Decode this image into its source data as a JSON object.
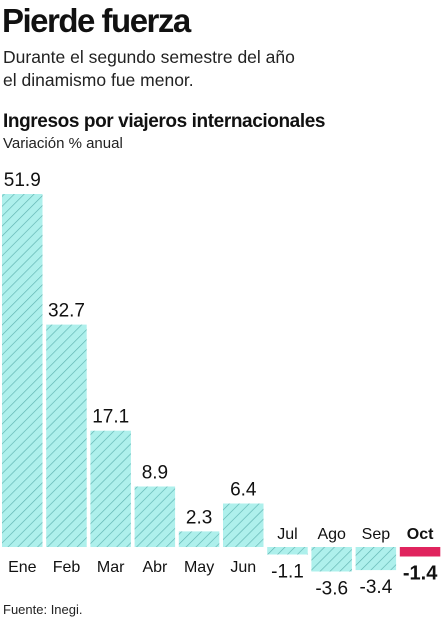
{
  "header": {
    "title": "Pierde fuerza",
    "subtitle_line1": "Durante el segundo semestre del año",
    "subtitle_line2": "el dinamismo fue menor."
  },
  "chart_data": {
    "type": "bar",
    "title": "Ingresos por viajeros internacionales",
    "subtitle": "Variación % anual",
    "categories": [
      "Ene",
      "Feb",
      "Mar",
      "Abr",
      "May",
      "Jun",
      "Jul",
      "Ago",
      "Sep",
      "Oct"
    ],
    "values": [
      51.9,
      32.7,
      17.1,
      8.9,
      2.3,
      6.4,
      -1.1,
      -3.6,
      -3.4,
      -1.4
    ],
    "value_labels": [
      "51.9",
      "32.7",
      "17.1",
      "8.9",
      "2.3",
      "6.4",
      "-1.1",
      "-3.6",
      "-3.4",
      "-1.4"
    ],
    "highlight_category": "Oct",
    "colors": {
      "bar_fill": "#aef0ec",
      "bar_hatch": "#5fb3b0",
      "highlight": "#e0245e",
      "text": "#111111"
    },
    "grid": false,
    "legend": "none"
  },
  "footer": {
    "source": "Fuente: Inegi."
  }
}
